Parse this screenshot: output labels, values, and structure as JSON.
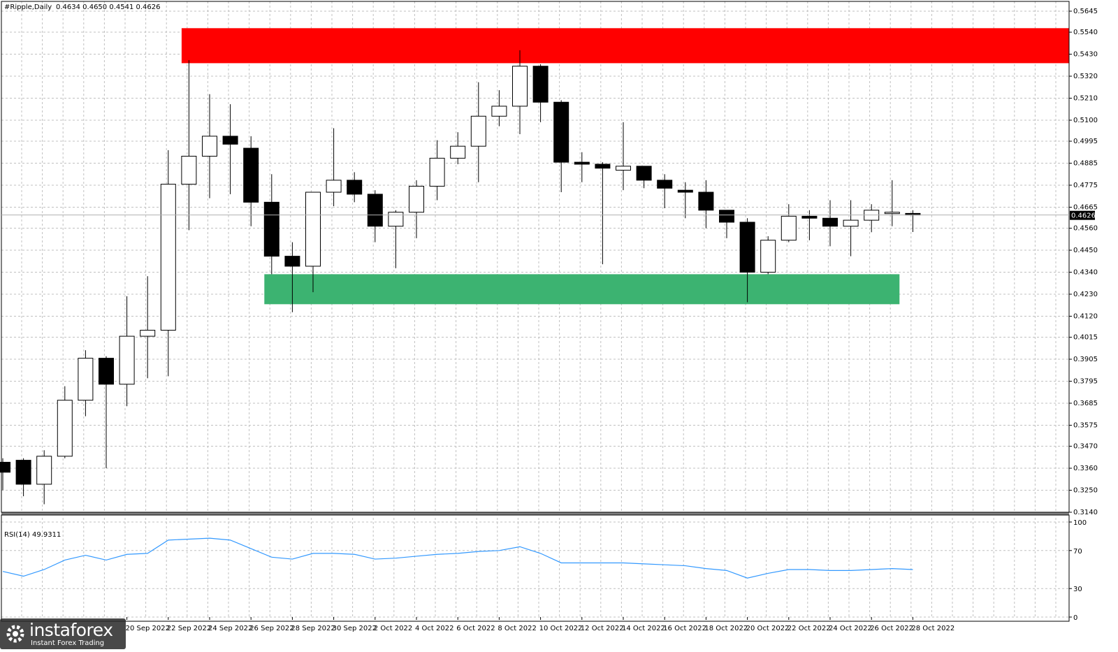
{
  "header": {
    "symbol": "#Ripple,Daily",
    "ohlc": "0.4634 0.4650 0.4541 0.4626"
  },
  "rsi_header": {
    "label": "RSI(14) 49.9311"
  },
  "current_price_label": "0.4626",
  "watermark": {
    "brand": "instaforex",
    "tagline": "Instant Forex Trading"
  },
  "colors": {
    "resistance_zone": "#ff0000",
    "support_zone": "#3cb371",
    "rsi_line": "#3399ff",
    "bull_body": "#ffffff",
    "bear_body": "#000000",
    "grid": "#c0c0c0"
  },
  "chart_data": [
    {
      "type": "candlestick",
      "price_range": [
        0.314,
        0.5645
      ],
      "y_ticks": [
        "0.5645",
        "0.5540",
        "0.5430",
        "0.5320",
        "0.5210",
        "0.5100",
        "0.4995",
        "0.4885",
        "0.4775",
        "0.4665",
        "0.4560",
        "0.4450",
        "0.4340",
        "0.4230",
        "0.4120",
        "0.4015",
        "0.3905",
        "0.3795",
        "0.3685",
        "0.3575",
        "0.3470",
        "0.3360",
        "0.3250",
        "0.3140"
      ],
      "x_tick_labels": [
        "20 Sep 2022",
        "22 Sep 2022",
        "24 Sep 2022",
        "26 Sep 2022",
        "28 Sep 2022",
        "30 Sep 2022",
        "2 Oct 2022",
        "4 Oct 2022",
        "6 Oct 2022",
        "8 Oct 2022",
        "10 Oct 2022",
        "12 Oct 2022",
        "14 Oct 2022",
        "16 Oct 2022",
        "18 Oct 2022",
        "20 Oct 2022",
        "22 Oct 2022",
        "24 Oct 2022",
        "26 Oct 2022",
        "28 Oct 2022"
      ],
      "current_price": 0.4626,
      "zones": [
        {
          "name": "resistance",
          "start_index": 9,
          "end_index": 54,
          "top": 0.556,
          "bottom": 0.5385
        },
        {
          "name": "support",
          "start_index": 13,
          "end_index": 43,
          "top": 0.433,
          "bottom": 0.418
        }
      ],
      "candles": [
        {
          "o": 0.339,
          "h": 0.341,
          "l": 0.325,
          "c": 0.334
        },
        {
          "o": 0.34,
          "h": 0.341,
          "l": 0.322,
          "c": 0.328
        },
        {
          "o": 0.328,
          "h": 0.345,
          "l": 0.318,
          "c": 0.342
        },
        {
          "o": 0.342,
          "h": 0.377,
          "l": 0.341,
          "c": 0.37
        },
        {
          "o": 0.37,
          "h": 0.395,
          "l": 0.362,
          "c": 0.391
        },
        {
          "o": 0.391,
          "h": 0.392,
          "l": 0.336,
          "c": 0.378
        },
        {
          "o": 0.378,
          "h": 0.422,
          "l": 0.367,
          "c": 0.402
        },
        {
          "o": 0.402,
          "h": 0.432,
          "l": 0.381,
          "c": 0.405
        },
        {
          "o": 0.405,
          "h": 0.495,
          "l": 0.382,
          "c": 0.478
        },
        {
          "o": 0.478,
          "h": 0.54,
          "l": 0.455,
          "c": 0.492
        },
        {
          "o": 0.492,
          "h": 0.523,
          "l": 0.471,
          "c": 0.502
        },
        {
          "o": 0.502,
          "h": 0.518,
          "l": 0.473,
          "c": 0.498
        },
        {
          "o": 0.496,
          "h": 0.502,
          "l": 0.457,
          "c": 0.469
        },
        {
          "o": 0.469,
          "h": 0.483,
          "l": 0.433,
          "c": 0.442
        },
        {
          "o": 0.442,
          "h": 0.449,
          "l": 0.414,
          "c": 0.437
        },
        {
          "o": 0.437,
          "h": 0.474,
          "l": 0.424,
          "c": 0.474
        },
        {
          "o": 0.474,
          "h": 0.506,
          "l": 0.467,
          "c": 0.48
        },
        {
          "o": 0.48,
          "h": 0.484,
          "l": 0.469,
          "c": 0.473
        },
        {
          "o": 0.473,
          "h": 0.475,
          "l": 0.449,
          "c": 0.457
        },
        {
          "o": 0.457,
          "h": 0.465,
          "l": 0.436,
          "c": 0.464
        },
        {
          "o": 0.464,
          "h": 0.48,
          "l": 0.451,
          "c": 0.477
        },
        {
          "o": 0.477,
          "h": 0.5,
          "l": 0.47,
          "c": 0.491
        },
        {
          "o": 0.491,
          "h": 0.504,
          "l": 0.488,
          "c": 0.497
        },
        {
          "o": 0.497,
          "h": 0.529,
          "l": 0.479,
          "c": 0.512
        },
        {
          "o": 0.512,
          "h": 0.525,
          "l": 0.507,
          "c": 0.517
        },
        {
          "o": 0.517,
          "h": 0.545,
          "l": 0.503,
          "c": 0.537
        },
        {
          "o": 0.537,
          "h": 0.538,
          "l": 0.509,
          "c": 0.519
        },
        {
          "o": 0.519,
          "h": 0.52,
          "l": 0.474,
          "c": 0.489
        },
        {
          "o": 0.489,
          "h": 0.494,
          "l": 0.479,
          "c": 0.488
        },
        {
          "o": 0.488,
          "h": 0.489,
          "l": 0.438,
          "c": 0.486
        },
        {
          "o": 0.485,
          "h": 0.509,
          "l": 0.475,
          "c": 0.487
        },
        {
          "o": 0.487,
          "h": 0.487,
          "l": 0.476,
          "c": 0.48
        },
        {
          "o": 0.48,
          "h": 0.483,
          "l": 0.466,
          "c": 0.476
        },
        {
          "o": 0.475,
          "h": 0.479,
          "l": 0.461,
          "c": 0.474
        },
        {
          "o": 0.474,
          "h": 0.48,
          "l": 0.456,
          "c": 0.465
        },
        {
          "o": 0.465,
          "h": 0.465,
          "l": 0.451,
          "c": 0.459
        },
        {
          "o": 0.459,
          "h": 0.461,
          "l": 0.419,
          "c": 0.434
        },
        {
          "o": 0.434,
          "h": 0.452,
          "l": 0.433,
          "c": 0.45
        },
        {
          "o": 0.45,
          "h": 0.468,
          "l": 0.449,
          "c": 0.462
        },
        {
          "o": 0.462,
          "h": 0.465,
          "l": 0.45,
          "c": 0.461
        },
        {
          "o": 0.461,
          "h": 0.47,
          "l": 0.447,
          "c": 0.457
        },
        {
          "o": 0.457,
          "h": 0.47,
          "l": 0.442,
          "c": 0.46
        },
        {
          "o": 0.46,
          "h": 0.468,
          "l": 0.454,
          "c": 0.465
        },
        {
          "o": 0.464,
          "h": 0.48,
          "l": 0.457,
          "c": 0.464
        },
        {
          "o": 0.4634,
          "h": 0.465,
          "l": 0.4541,
          "c": 0.4626
        }
      ]
    },
    {
      "type": "line",
      "y_range": [
        0,
        100
      ],
      "y_ticks": [
        "100",
        "70",
        "30",
        "0"
      ],
      "series": [
        {
          "values": [
            48,
            43,
            50,
            60,
            65,
            60,
            66,
            67,
            81,
            82,
            83,
            81,
            72,
            63,
            61,
            67,
            67,
            66,
            61,
            62,
            64,
            66,
            67,
            69,
            70,
            74,
            67,
            57,
            57,
            57,
            57,
            56,
            55,
            54,
            51,
            49,
            41,
            46,
            50,
            50,
            49,
            49,
            50,
            51,
            50
          ]
        }
      ]
    }
  ]
}
